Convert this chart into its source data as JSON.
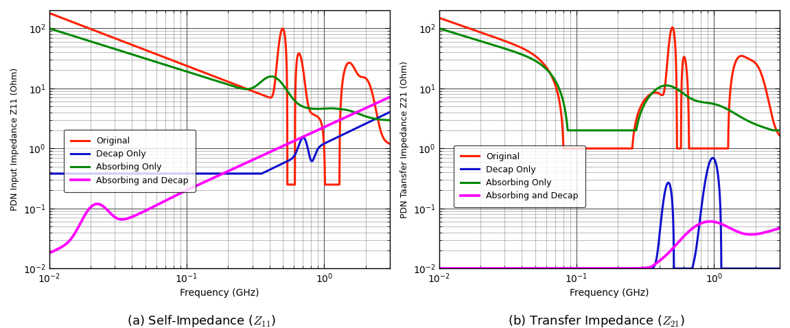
{
  "xlim": [
    0.01,
    3.0
  ],
  "ylim": [
    0.01,
    200
  ],
  "xlabel": "Frequency (GHz)",
  "ylabel_z11": "PDN Input Impedance Z11 (Ohm)",
  "ylabel_z21": "PDN Taansfer Impedance Z21 (Ohm)",
  "caption_z11": "(a) Self-Impedance ($Z_{11}$)",
  "caption_z21": "(b) Transfer Impedance ($Z_{21}$)",
  "legend_labels": [
    "Original",
    "Decap Only",
    "Absorbing Only",
    "Absorbing and Decap"
  ],
  "colors": {
    "original": "#FF2000",
    "decap": "#1010CC",
    "absorbing": "#008800",
    "both": "#FF00FF"
  },
  "linewidth": 2.2,
  "grid_color": "#555555",
  "bg_color": "#FFFFFF"
}
